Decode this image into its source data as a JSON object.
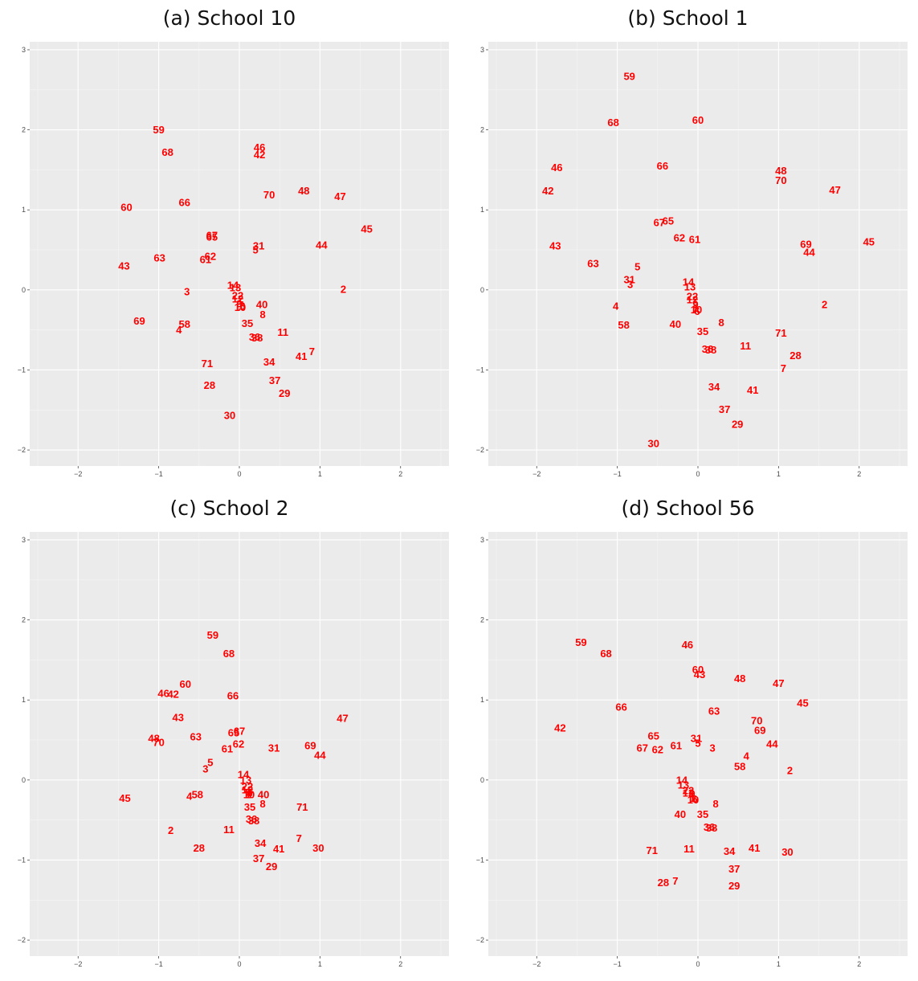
{
  "chart_data": [
    {
      "type": "scatter",
      "title": "(a) School 10",
      "xlabel": "",
      "ylabel": "",
      "xlim": [
        -2.6,
        2.6
      ],
      "ylim": [
        -2.2,
        3.1
      ],
      "xticks": [
        -2,
        -1,
        0,
        1,
        2
      ],
      "yticks": [
        -2,
        -1,
        0,
        1,
        2,
        3
      ],
      "xtick_labels": [
        "−2",
        "−1",
        "0",
        "1",
        "2"
      ],
      "ytick_labels": [
        "−2",
        "−1",
        "0",
        "1",
        "2",
        "3"
      ],
      "grid": true,
      "point_color": "#ff0000",
      "points": [
        {
          "label": "59",
          "x": -1.0,
          "y": 2.0
        },
        {
          "label": "68",
          "x": -0.89,
          "y": 1.72
        },
        {
          "label": "46",
          "x": 0.25,
          "y": 1.78
        },
        {
          "label": "42",
          "x": 0.25,
          "y": 1.69
        },
        {
          "label": "70",
          "x": 0.37,
          "y": 1.19
        },
        {
          "label": "48",
          "x": 0.8,
          "y": 1.24
        },
        {
          "label": "47",
          "x": 1.25,
          "y": 1.17
        },
        {
          "label": "60",
          "x": -1.4,
          "y": 1.03
        },
        {
          "label": "66",
          "x": -0.68,
          "y": 1.09
        },
        {
          "label": "45",
          "x": 1.58,
          "y": 0.76
        },
        {
          "label": "67",
          "x": -0.34,
          "y": 0.68
        },
        {
          "label": "65",
          "x": -0.34,
          "y": 0.66
        },
        {
          "label": "31",
          "x": 0.24,
          "y": 0.55
        },
        {
          "label": "5",
          "x": 0.2,
          "y": 0.5
        },
        {
          "label": "44",
          "x": 1.02,
          "y": 0.56
        },
        {
          "label": "63",
          "x": -0.99,
          "y": 0.4
        },
        {
          "label": "62",
          "x": -0.36,
          "y": 0.42
        },
        {
          "label": "61",
          "x": -0.42,
          "y": 0.38
        },
        {
          "label": "43",
          "x": -1.43,
          "y": 0.3
        },
        {
          "label": "14",
          "x": -0.08,
          "y": 0.06
        },
        {
          "label": "13",
          "x": -0.05,
          "y": 0.03
        },
        {
          "label": "2",
          "x": 1.29,
          "y": 0.01
        },
        {
          "label": "3",
          "x": -0.65,
          "y": -0.02
        },
        {
          "label": "22",
          "x": -0.02,
          "y": -0.07
        },
        {
          "label": "12",
          "x": -0.02,
          "y": -0.11
        },
        {
          "label": "9",
          "x": 0.0,
          "y": -0.17
        },
        {
          "label": "1",
          "x": 0.02,
          "y": -0.2
        },
        {
          "label": "6",
          "x": 0.04,
          "y": -0.2
        },
        {
          "label": "10",
          "x": 0.01,
          "y": -0.22
        },
        {
          "label": "40",
          "x": 0.28,
          "y": -0.18
        },
        {
          "label": "8",
          "x": 0.29,
          "y": -0.31
        },
        {
          "label": "69",
          "x": -1.24,
          "y": -0.39
        },
        {
          "label": "58",
          "x": -0.68,
          "y": -0.43
        },
        {
          "label": "4",
          "x": -0.75,
          "y": -0.5
        },
        {
          "label": "35",
          "x": 0.1,
          "y": -0.42
        },
        {
          "label": "11",
          "x": 0.54,
          "y": -0.53
        },
        {
          "label": "36",
          "x": 0.19,
          "y": -0.59
        },
        {
          "label": "38",
          "x": 0.22,
          "y": -0.6
        },
        {
          "label": "7",
          "x": 0.9,
          "y": -0.77
        },
        {
          "label": "41",
          "x": 0.77,
          "y": -0.83
        },
        {
          "label": "71",
          "x": -0.4,
          "y": -0.92
        },
        {
          "label": "34",
          "x": 0.37,
          "y": -0.9
        },
        {
          "label": "37",
          "x": 0.44,
          "y": -1.13
        },
        {
          "label": "28",
          "x": -0.37,
          "y": -1.19
        },
        {
          "label": "29",
          "x": 0.56,
          "y": -1.29
        },
        {
          "label": "30",
          "x": -0.12,
          "y": -1.57
        }
      ]
    },
    {
      "type": "scatter",
      "title": "(b) School 1",
      "xlabel": "",
      "ylabel": "",
      "xlim": [
        -2.6,
        2.6
      ],
      "ylim": [
        -2.2,
        3.1
      ],
      "xticks": [
        -2,
        -1,
        0,
        1,
        2
      ],
      "yticks": [
        -2,
        -1,
        0,
        1,
        2,
        3
      ],
      "xtick_labels": [
        "−2",
        "−1",
        "0",
        "1",
        "2"
      ],
      "ytick_labels": [
        "−2",
        "−1",
        "0",
        "1",
        "2",
        "3"
      ],
      "grid": true,
      "point_color": "#ff0000",
      "points": [
        {
          "label": "59",
          "x": -0.85,
          "y": 2.67
        },
        {
          "label": "60",
          "x": 0.0,
          "y": 2.12
        },
        {
          "label": "68",
          "x": -1.05,
          "y": 2.09
        },
        {
          "label": "46",
          "x": -1.75,
          "y": 1.53
        },
        {
          "label": "66",
          "x": -0.44,
          "y": 1.55
        },
        {
          "label": "48",
          "x": 1.03,
          "y": 1.49
        },
        {
          "label": "70",
          "x": 1.03,
          "y": 1.37
        },
        {
          "label": "42",
          "x": -1.86,
          "y": 1.24
        },
        {
          "label": "47",
          "x": 1.7,
          "y": 1.25
        },
        {
          "label": "65",
          "x": -0.37,
          "y": 0.86
        },
        {
          "label": "67",
          "x": -0.48,
          "y": 0.84
        },
        {
          "label": "62",
          "x": -0.23,
          "y": 0.65
        },
        {
          "label": "61",
          "x": -0.04,
          "y": 0.63
        },
        {
          "label": "45",
          "x": 2.12,
          "y": 0.6
        },
        {
          "label": "69",
          "x": 1.34,
          "y": 0.57
        },
        {
          "label": "44",
          "x": 1.38,
          "y": 0.47
        },
        {
          "label": "43",
          "x": -1.77,
          "y": 0.55
        },
        {
          "label": "63",
          "x": -1.3,
          "y": 0.33
        },
        {
          "label": "5",
          "x": -0.75,
          "y": 0.29
        },
        {
          "label": "31",
          "x": -0.85,
          "y": 0.13
        },
        {
          "label": "3",
          "x": -0.84,
          "y": 0.07
        },
        {
          "label": "14",
          "x": -0.12,
          "y": 0.1
        },
        {
          "label": "13",
          "x": -0.1,
          "y": 0.04
        },
        {
          "label": "22",
          "x": -0.07,
          "y": -0.08
        },
        {
          "label": "12",
          "x": -0.07,
          "y": -0.12
        },
        {
          "label": "9",
          "x": -0.03,
          "y": -0.18
        },
        {
          "label": "1",
          "x": -0.03,
          "y": -0.23
        },
        {
          "label": "6",
          "x": -0.01,
          "y": -0.27
        },
        {
          "label": "10",
          "x": -0.02,
          "y": -0.25
        },
        {
          "label": "2",
          "x": 1.57,
          "y": -0.18
        },
        {
          "label": "4",
          "x": -1.02,
          "y": -0.2
        },
        {
          "label": "58",
          "x": -0.92,
          "y": -0.44
        },
        {
          "label": "40",
          "x": -0.28,
          "y": -0.43
        },
        {
          "label": "8",
          "x": 0.29,
          "y": -0.41
        },
        {
          "label": "35",
          "x": 0.06,
          "y": -0.52
        },
        {
          "label": "71",
          "x": 1.03,
          "y": -0.54
        },
        {
          "label": "11",
          "x": 0.59,
          "y": -0.7
        },
        {
          "label": "36",
          "x": 0.12,
          "y": -0.74
        },
        {
          "label": "38",
          "x": 0.16,
          "y": -0.75
        },
        {
          "label": "28",
          "x": 1.21,
          "y": -0.82
        },
        {
          "label": "7",
          "x": 1.06,
          "y": -0.98
        },
        {
          "label": "34",
          "x": 0.2,
          "y": -1.21
        },
        {
          "label": "41",
          "x": 0.68,
          "y": -1.25
        },
        {
          "label": "37",
          "x": 0.33,
          "y": -1.49
        },
        {
          "label": "29",
          "x": 0.49,
          "y": -1.68
        },
        {
          "label": "30",
          "x": -0.55,
          "y": -1.92
        }
      ]
    },
    {
      "type": "scatter",
      "title": "(c) School 2",
      "xlabel": "",
      "ylabel": "",
      "xlim": [
        -2.6,
        2.6
      ],
      "ylim": [
        -2.2,
        3.1
      ],
      "xticks": [
        -2,
        -1,
        0,
        1,
        2
      ],
      "yticks": [
        -2,
        -1,
        0,
        1,
        2,
        3
      ],
      "xtick_labels": [
        "−2",
        "−1",
        "0",
        "1",
        "2"
      ],
      "ytick_labels": [
        "−2",
        "−1",
        "0",
        "1",
        "2",
        "3"
      ],
      "grid": true,
      "point_color": "#ff0000",
      "points": [
        {
          "label": "59",
          "x": -0.33,
          "y": 1.81
        },
        {
          "label": "68",
          "x": -0.13,
          "y": 1.58
        },
        {
          "label": "60",
          "x": -0.67,
          "y": 1.2
        },
        {
          "label": "46",
          "x": -0.94,
          "y": 1.08
        },
        {
          "label": "42",
          "x": -0.82,
          "y": 1.07
        },
        {
          "label": "66",
          "x": -0.08,
          "y": 1.05
        },
        {
          "label": "43",
          "x": -0.76,
          "y": 0.78
        },
        {
          "label": "47",
          "x": 1.28,
          "y": 0.77
        },
        {
          "label": "67",
          "x": 0.0,
          "y": 0.61
        },
        {
          "label": "65",
          "x": -0.07,
          "y": 0.59
        },
        {
          "label": "48",
          "x": -1.06,
          "y": 0.52
        },
        {
          "label": "70",
          "x": -1.0,
          "y": 0.47
        },
        {
          "label": "63",
          "x": -0.54,
          "y": 0.54
        },
        {
          "label": "62",
          "x": -0.01,
          "y": 0.45
        },
        {
          "label": "69",
          "x": 0.88,
          "y": 0.43
        },
        {
          "label": "61",
          "x": -0.15,
          "y": 0.39
        },
        {
          "label": "31",
          "x": 0.43,
          "y": 0.4
        },
        {
          "label": "44",
          "x": 1.0,
          "y": 0.31
        },
        {
          "label": "5",
          "x": -0.36,
          "y": 0.22
        },
        {
          "label": "3",
          "x": -0.42,
          "y": 0.14
        },
        {
          "label": "14",
          "x": 0.05,
          "y": 0.07
        },
        {
          "label": "13",
          "x": 0.08,
          "y": 0.0
        },
        {
          "label": "22",
          "x": 0.1,
          "y": -0.08
        },
        {
          "label": "12",
          "x": 0.1,
          "y": -0.12
        },
        {
          "label": "9",
          "x": 0.11,
          "y": -0.15
        },
        {
          "label": "1",
          "x": 0.11,
          "y": -0.18
        },
        {
          "label": "6",
          "x": 0.13,
          "y": -0.16
        },
        {
          "label": "10",
          "x": 0.12,
          "y": -0.18
        },
        {
          "label": "40",
          "x": 0.3,
          "y": -0.18
        },
        {
          "label": "45",
          "x": -1.42,
          "y": -0.23
        },
        {
          "label": "4",
          "x": -0.62,
          "y": -0.2
        },
        {
          "label": "58",
          "x": -0.52,
          "y": -0.18
        },
        {
          "label": "8",
          "x": 0.29,
          "y": -0.3
        },
        {
          "label": "35",
          "x": 0.13,
          "y": -0.34
        },
        {
          "label": "71",
          "x": 0.78,
          "y": -0.34
        },
        {
          "label": "36",
          "x": 0.15,
          "y": -0.49
        },
        {
          "label": "38",
          "x": 0.18,
          "y": -0.51
        },
        {
          "label": "2",
          "x": -0.85,
          "y": -0.63
        },
        {
          "label": "11",
          "x": -0.13,
          "y": -0.62
        },
        {
          "label": "7",
          "x": 0.74,
          "y": -0.73
        },
        {
          "label": "34",
          "x": 0.26,
          "y": -0.79
        },
        {
          "label": "28",
          "x": -0.5,
          "y": -0.85
        },
        {
          "label": "41",
          "x": 0.49,
          "y": -0.86
        },
        {
          "label": "30",
          "x": 0.98,
          "y": -0.85
        },
        {
          "label": "37",
          "x": 0.24,
          "y": -0.98
        },
        {
          "label": "29",
          "x": 0.4,
          "y": -1.08
        }
      ]
    },
    {
      "type": "scatter",
      "title": "(d) School 56",
      "xlabel": "",
      "ylabel": "",
      "xlim": [
        -2.6,
        2.6
      ],
      "ylim": [
        -2.2,
        3.1
      ],
      "xticks": [
        -2,
        -1,
        0,
        1,
        2
      ],
      "yticks": [
        -2,
        -1,
        0,
        1,
        2,
        3
      ],
      "xtick_labels": [
        "−2",
        "−1",
        "0",
        "1",
        "2"
      ],
      "ytick_labels": [
        "−2",
        "−1",
        "0",
        "1",
        "2",
        "3"
      ],
      "grid": true,
      "point_color": "#ff0000",
      "points": [
        {
          "label": "59",
          "x": -1.45,
          "y": 1.72
        },
        {
          "label": "68",
          "x": -1.14,
          "y": 1.58
        },
        {
          "label": "46",
          "x": -0.13,
          "y": 1.69
        },
        {
          "label": "60",
          "x": 0.0,
          "y": 1.38
        },
        {
          "label": "43",
          "x": 0.02,
          "y": 1.32
        },
        {
          "label": "48",
          "x": 0.52,
          "y": 1.27
        },
        {
          "label": "47",
          "x": 1.0,
          "y": 1.21
        },
        {
          "label": "45",
          "x": 1.3,
          "y": 0.96
        },
        {
          "label": "66",
          "x": -0.95,
          "y": 0.91
        },
        {
          "label": "63",
          "x": 0.2,
          "y": 0.86
        },
        {
          "label": "70",
          "x": 0.73,
          "y": 0.74
        },
        {
          "label": "69",
          "x": 0.77,
          "y": 0.62
        },
        {
          "label": "42",
          "x": -1.71,
          "y": 0.65
        },
        {
          "label": "65",
          "x": -0.55,
          "y": 0.55
        },
        {
          "label": "31",
          "x": -0.02,
          "y": 0.52
        },
        {
          "label": "5",
          "x": 0.0,
          "y": 0.46
        },
        {
          "label": "44",
          "x": 0.92,
          "y": 0.45
        },
        {
          "label": "61",
          "x": -0.27,
          "y": 0.43
        },
        {
          "label": "3",
          "x": 0.18,
          "y": 0.4
        },
        {
          "label": "67",
          "x": -0.69,
          "y": 0.4
        },
        {
          "label": "62",
          "x": -0.5,
          "y": 0.38
        },
        {
          "label": "4",
          "x": 0.6,
          "y": 0.3
        },
        {
          "label": "58",
          "x": 0.52,
          "y": 0.17
        },
        {
          "label": "2",
          "x": 1.14,
          "y": 0.12
        },
        {
          "label": "14",
          "x": -0.2,
          "y": -0.0
        },
        {
          "label": "13",
          "x": -0.18,
          "y": -0.06
        },
        {
          "label": "22",
          "x": -0.12,
          "y": -0.13
        },
        {
          "label": "12",
          "x": -0.12,
          "y": -0.16
        },
        {
          "label": "9",
          "x": -0.07,
          "y": -0.17
        },
        {
          "label": "1",
          "x": -0.07,
          "y": -0.23
        },
        {
          "label": "6",
          "x": -0.04,
          "y": -0.24
        },
        {
          "label": "10",
          "x": -0.06,
          "y": -0.25
        },
        {
          "label": "8",
          "x": 0.22,
          "y": -0.3
        },
        {
          "label": "40",
          "x": -0.22,
          "y": -0.43
        },
        {
          "label": "35",
          "x": 0.06,
          "y": -0.43
        },
        {
          "label": "36",
          "x": 0.14,
          "y": -0.59
        },
        {
          "label": "38",
          "x": 0.17,
          "y": -0.6
        },
        {
          "label": "71",
          "x": -0.57,
          "y": -0.88
        },
        {
          "label": "11",
          "x": -0.11,
          "y": -0.86
        },
        {
          "label": "41",
          "x": 0.7,
          "y": -0.85
        },
        {
          "label": "34",
          "x": 0.39,
          "y": -0.89
        },
        {
          "label": "30",
          "x": 1.11,
          "y": -0.9
        },
        {
          "label": "37",
          "x": 0.45,
          "y": -1.11
        },
        {
          "label": "7",
          "x": -0.28,
          "y": -1.26
        },
        {
          "label": "28",
          "x": -0.43,
          "y": -1.28
        },
        {
          "label": "29",
          "x": 0.45,
          "y": -1.32
        }
      ]
    }
  ]
}
